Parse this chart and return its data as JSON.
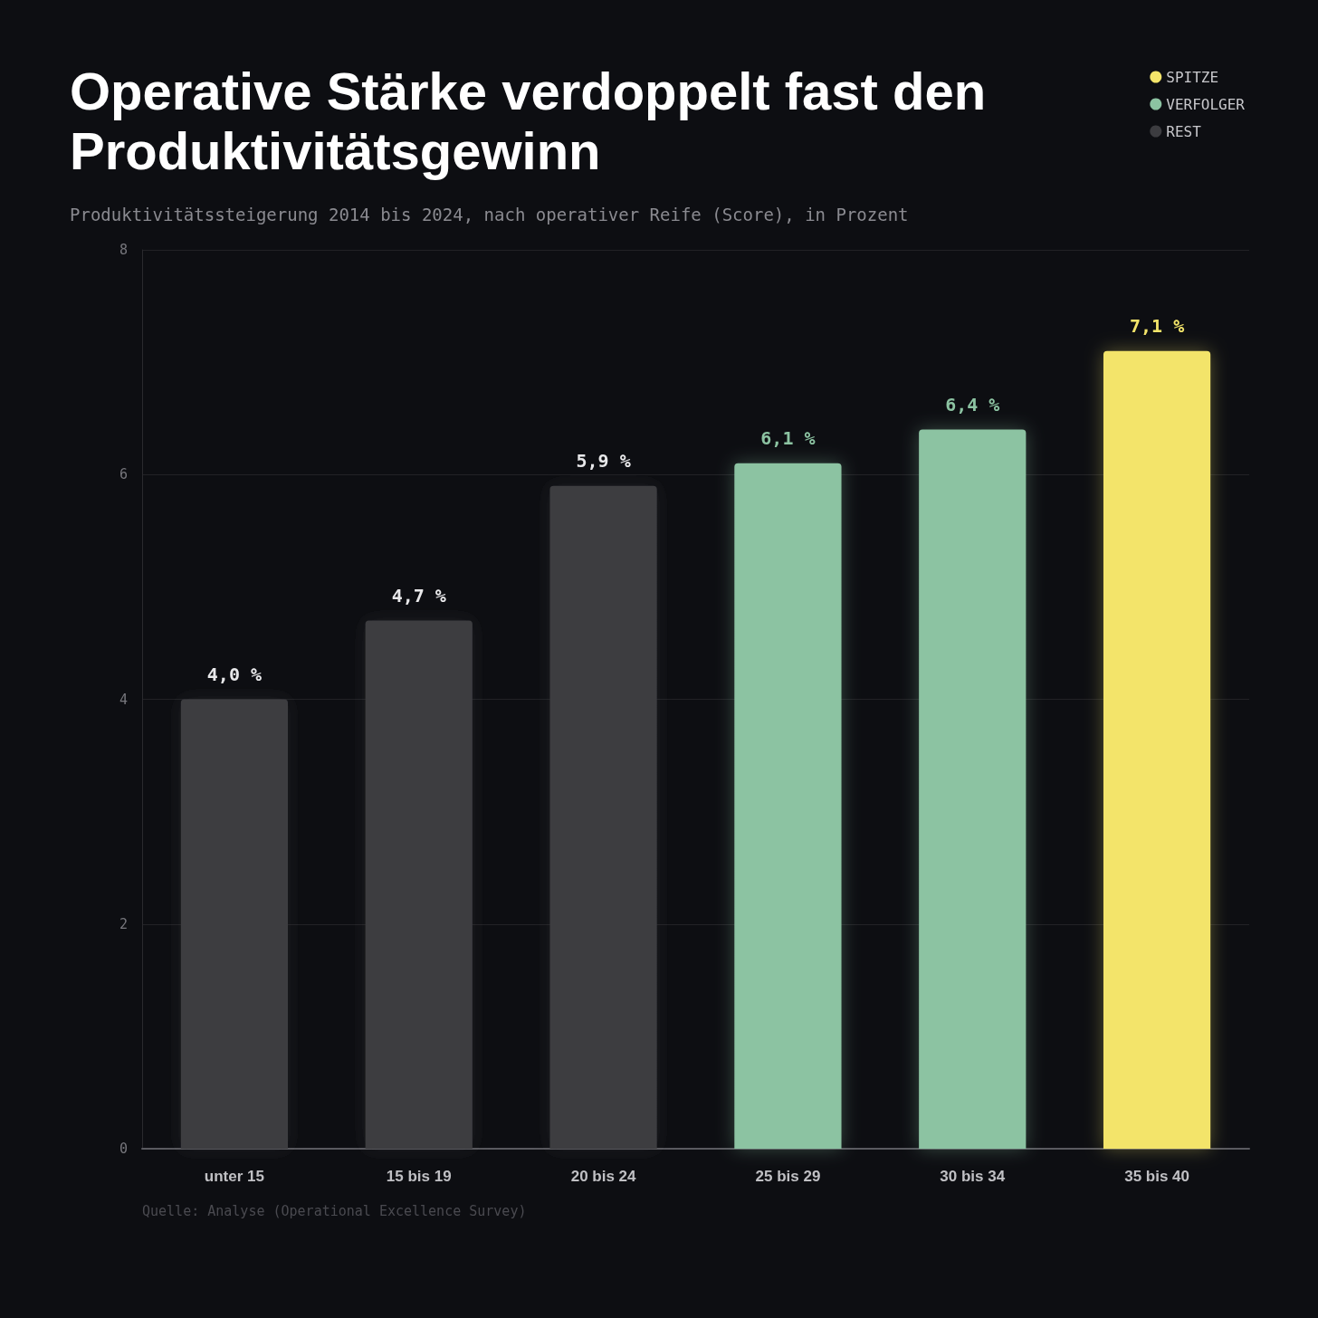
{
  "chart_data": {
    "type": "bar",
    "title": "Operative Stärke verdoppelt fast den Produktivitätsgewinn",
    "subtitle": "Produktivitätssteigerung 2014 bis 2024, nach operativer Reife (Score), in Prozent",
    "categories": [
      "unter 15",
      "15 bis 19",
      "20 bis 24",
      "25 bis 29",
      "30 bis 34",
      "35 bis 40"
    ],
    "series": [
      {
        "name": "SPITZE",
        "color": "#f3e46a",
        "values": [
          null,
          null,
          null,
          null,
          null,
          7.1
        ]
      },
      {
        "name": "VERFOLGER",
        "color": "#8cc3a2",
        "values": [
          null,
          null,
          null,
          6.1,
          6.4,
          null
        ]
      },
      {
        "name": "REST",
        "color": "#3c3c40",
        "values": [
          4.0,
          4.7,
          5.9,
          null,
          null,
          null
        ]
      }
    ],
    "value_labels": [
      "4,0 %",
      "4,7 %",
      "5,9 %",
      "6,1 %",
      "6,4 %",
      "7,1 %"
    ],
    "ylim": [
      0,
      8
    ],
    "yticks": [
      0,
      2,
      4,
      6,
      8
    ],
    "grid": "y",
    "legend": "top right",
    "annotations": [
      "Quelle: Analyse (Operational Excellence Survey)"
    ]
  }
}
